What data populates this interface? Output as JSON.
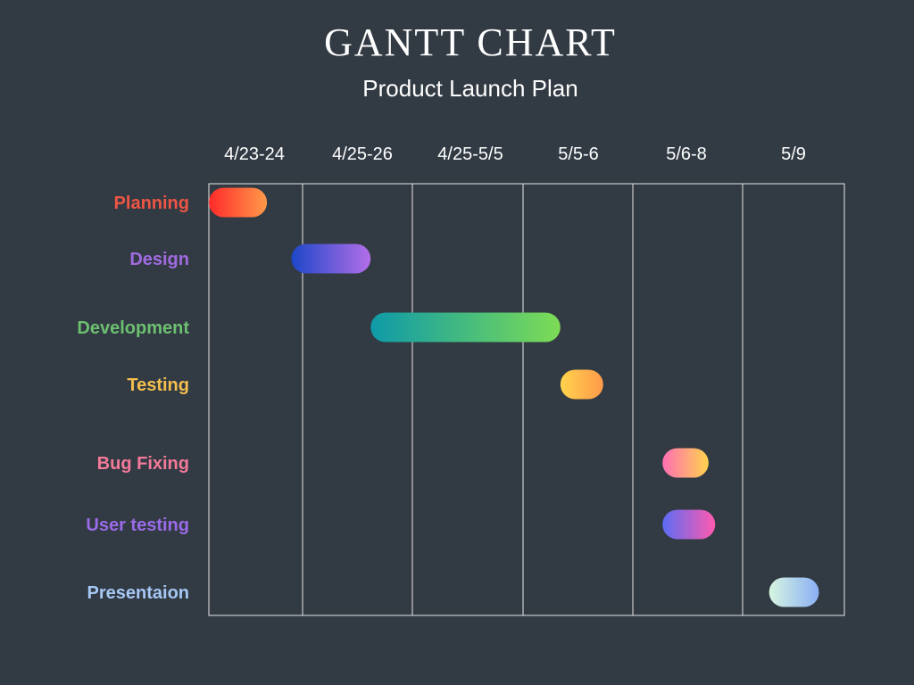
{
  "title": "GANTT CHART",
  "subtitle": "Product Launch Plan",
  "chart_data": {
    "type": "bar",
    "columns": [
      "4/23-24",
      "4/25-26",
      "4/25-5/5",
      "5/5-6",
      "5/6-8",
      "5/9"
    ],
    "tasks": [
      {
        "label": "Planning",
        "start": 0.0,
        "end": 0.62,
        "color": "#ef5544",
        "gradient": [
          "#ff2a2a",
          "#ff9a4a"
        ]
      },
      {
        "label": "Design",
        "start": 0.88,
        "end": 1.62,
        "color": "#a06be0",
        "gradient": [
          "#1d47c8",
          "#b46ee8"
        ]
      },
      {
        "label": "Development",
        "start": 1.62,
        "end": 3.34,
        "color": "#6cc070",
        "gradient": [
          "#0e9aa8",
          "#7ddc55"
        ]
      },
      {
        "label": "Testing",
        "start": 3.34,
        "end": 3.73,
        "color": "#f5bf4f",
        "gradient": [
          "#ffd34d",
          "#ff9a4a"
        ]
      },
      {
        "label": "Bug Fixing",
        "start": 4.27,
        "end": 4.69,
        "color": "#f47a9a",
        "gradient": [
          "#ff6fb5",
          "#ffd34d"
        ]
      },
      {
        "label": "User testing",
        "start": 4.27,
        "end": 4.75,
        "color": "#9a6be8",
        "gradient": [
          "#5b6cf5",
          "#ff5aae"
        ]
      },
      {
        "label": "Presentaion",
        "start": 5.26,
        "end": 5.75,
        "color": "#a6c8f5",
        "gradient": [
          "#d6f5e0",
          "#8ab0f5"
        ]
      }
    ]
  }
}
